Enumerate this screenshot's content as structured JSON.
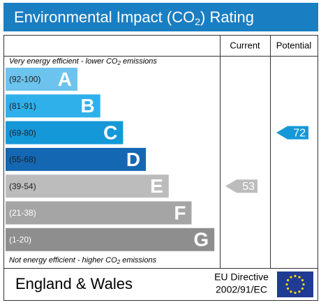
{
  "title": {
    "parts": [
      "Environmental Impact (CO",
      "2",
      ") Rating"
    ]
  },
  "header": {
    "current": "Current",
    "potential": "Potential"
  },
  "top_note": {
    "parts": [
      "Very energy efficient - lower CO",
      "2",
      " emissions"
    ]
  },
  "bands": [
    {
      "range": "(92-100)",
      "letter": "A",
      "color": "#6cc3ee"
    },
    {
      "range": "(81-91)",
      "letter": "B",
      "color": "#2fb0ea"
    },
    {
      "range": "(69-80)",
      "letter": "C",
      "color": "#1598d8"
    },
    {
      "range": "(55-68)",
      "letter": "D",
      "color": "#1467b2"
    },
    {
      "range": "(39-54)",
      "letter": "E",
      "color": "#bcbcbc"
    },
    {
      "range": "(21-38)",
      "letter": "F",
      "color": "#a5a5a5"
    },
    {
      "range": "(1-20)",
      "letter": "G",
      "color": "#8e8e8e"
    }
  ],
  "bottom_note": {
    "parts": [
      "Not energy efficient - higher CO",
      "2",
      " emissions"
    ]
  },
  "current": {
    "value": 53,
    "color": "#bcbcbc"
  },
  "potential": {
    "value": 72,
    "color": "#1598d8"
  },
  "footer": {
    "region": "England & Wales",
    "directive": "EU Directive",
    "code": "2002/91/EC"
  }
}
